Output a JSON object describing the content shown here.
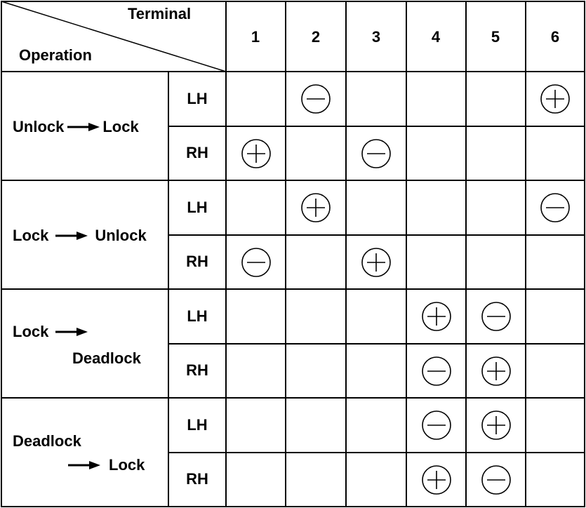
{
  "header": {
    "corner_top": "Terminal",
    "corner_bottom": "Operation",
    "terminals": [
      "1",
      "2",
      "3",
      "4",
      "5",
      "6"
    ]
  },
  "operations": [
    {
      "from": "Unlock",
      "to": "Lock",
      "rows": [
        {
          "side": "LH",
          "cells": [
            "",
            "-",
            "",
            "",
            "",
            "+"
          ]
        },
        {
          "side": "RH",
          "cells": [
            "+",
            "",
            "-",
            "",
            "",
            ""
          ]
        }
      ]
    },
    {
      "from": "Lock",
      "to": "Unlock",
      "rows": [
        {
          "side": "LH",
          "cells": [
            "",
            "+",
            "",
            "",
            "",
            "-"
          ]
        },
        {
          "side": "RH",
          "cells": [
            "-",
            "",
            "+",
            "",
            "",
            ""
          ]
        }
      ]
    },
    {
      "from": "Lock",
      "to": "Deadlock",
      "rows": [
        {
          "side": "LH",
          "cells": [
            "",
            "",
            "",
            "+",
            "-",
            ""
          ]
        },
        {
          "side": "RH",
          "cells": [
            "",
            "",
            "",
            "-",
            "+",
            ""
          ]
        }
      ]
    },
    {
      "from": "Deadlock",
      "to": "Lock",
      "rows": [
        {
          "side": "LH",
          "cells": [
            "",
            "",
            "",
            "-",
            "+",
            ""
          ]
        },
        {
          "side": "RH",
          "cells": [
            "",
            "",
            "",
            "+",
            "-",
            ""
          ]
        }
      ]
    }
  ]
}
